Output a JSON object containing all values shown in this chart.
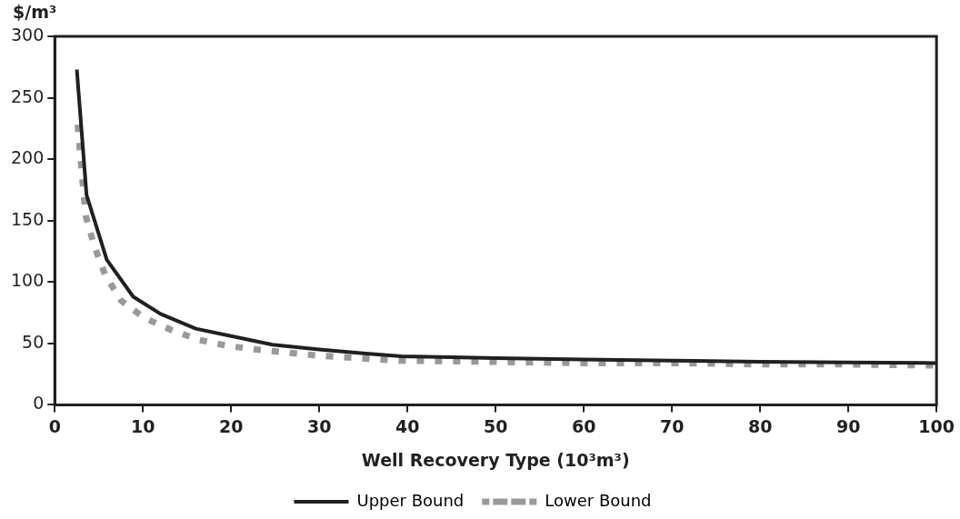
{
  "chart_data": {
    "type": "line",
    "ylabel": "$/m³",
    "xlabel": "Well Recovery Type (10³m³)",
    "xlim": [
      0,
      100
    ],
    "xticks": [
      0,
      10,
      20,
      30,
      40,
      50,
      60,
      70,
      80,
      90,
      100
    ],
    "ylim": [
      0,
      300
    ],
    "yticks": [
      0,
      50,
      100,
      150,
      200,
      250,
      300
    ],
    "grid": false,
    "legend": "bottom",
    "marker": "none",
    "series": [
      {
        "name": "Upper Bound",
        "color": "#231f20",
        "line_style": "solid",
        "x": [
          2.5,
          3.6,
          5.9,
          8.9,
          12,
          16,
          20,
          24.7,
          30,
          35,
          39.3,
          50,
          60,
          70,
          80,
          90,
          100
        ],
        "values": [
          273,
          171,
          118,
          88,
          74,
          62,
          56,
          49,
          45,
          42,
          39.5,
          38,
          37,
          36,
          35,
          34.5,
          34
        ]
      },
      {
        "name": "Lower Bound",
        "color": "#999999",
        "line_style": "dashed",
        "x": [
          2.6,
          2.9,
          3.2,
          3.5,
          4.5,
          5.7,
          7.5,
          10.1,
          13.2,
          16.3,
          19.6,
          22.9,
          30,
          39,
          50,
          60,
          70,
          80,
          90,
          100
        ],
        "values": [
          228,
          203,
          178,
          154,
          129,
          106,
          85,
          71,
          61,
          53,
          48,
          45,
          40,
          36,
          35,
          34,
          34,
          33,
          33,
          32
        ]
      }
    ]
  }
}
